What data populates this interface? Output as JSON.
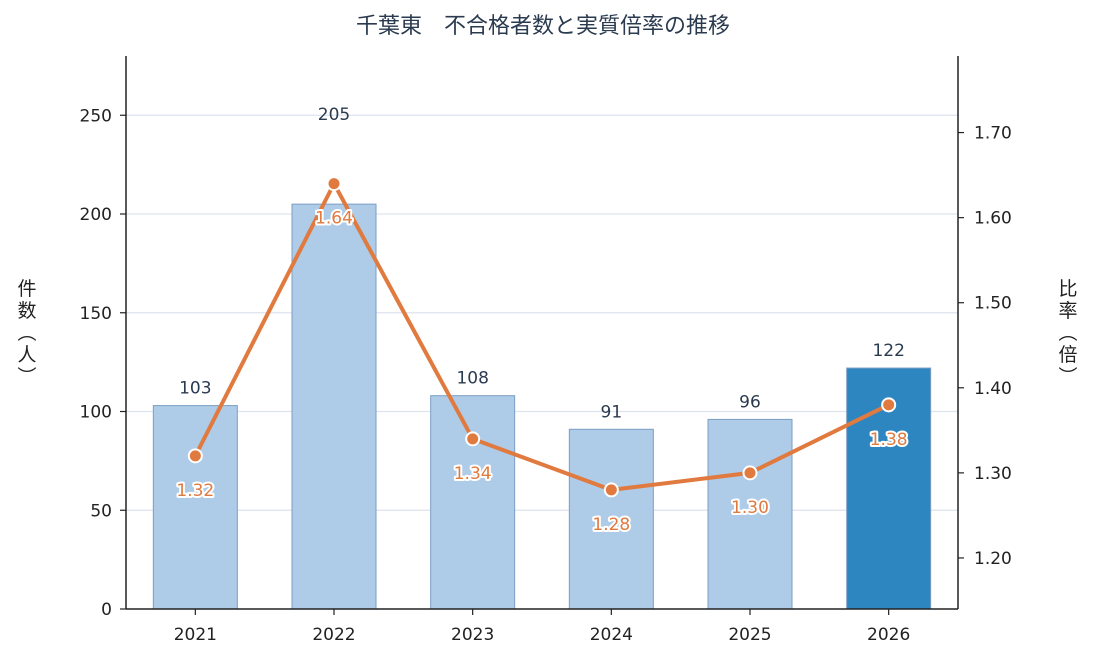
{
  "chart_data": {
    "type": "bar",
    "title": "千葉東　不合格者数と実質倍率の推移",
    "categories": [
      "2021",
      "2022",
      "2023",
      "2024",
      "2025",
      "2026"
    ],
    "series": [
      {
        "name": "",
        "kind": "bar",
        "axis": "left",
        "values": [
          103,
          205,
          108,
          91,
          96,
          122
        ]
      },
      {
        "name": "",
        "kind": "line",
        "axis": "right",
        "values": [
          1.32,
          1.64,
          1.34,
          1.28,
          1.3,
          1.38
        ]
      }
    ],
    "value_labels_bar": [
      "103",
      "205",
      "108",
      "91",
      "96",
      "122"
    ],
    "value_labels_line": [
      "1.32",
      "1.64",
      "1.34",
      "1.28",
      "1.30",
      "1.38"
    ],
    "ylabel_left": "件数（人）",
    "ylabel_right": "比率（倍）",
    "ylim_left": [
      0,
      280
    ],
    "ylim_right": [
      1.14,
      1.79
    ],
    "yticks_left": [
      "0",
      "50",
      "100",
      "150",
      "200",
      "250"
    ],
    "yticks_right": [
      "1.20",
      "1.30",
      "1.40",
      "1.50",
      "1.60",
      "1.70"
    ],
    "grid": "horizontal",
    "colors": {
      "bar": "#aecbe7",
      "bar_highlight": "#2e86c1",
      "bar_edge": "#7c9ec4",
      "line": "#e07a3f",
      "grid": "#dde3ef",
      "axis": "#222222",
      "title": "#2b3b4f"
    },
    "highlight_index": 5
  }
}
